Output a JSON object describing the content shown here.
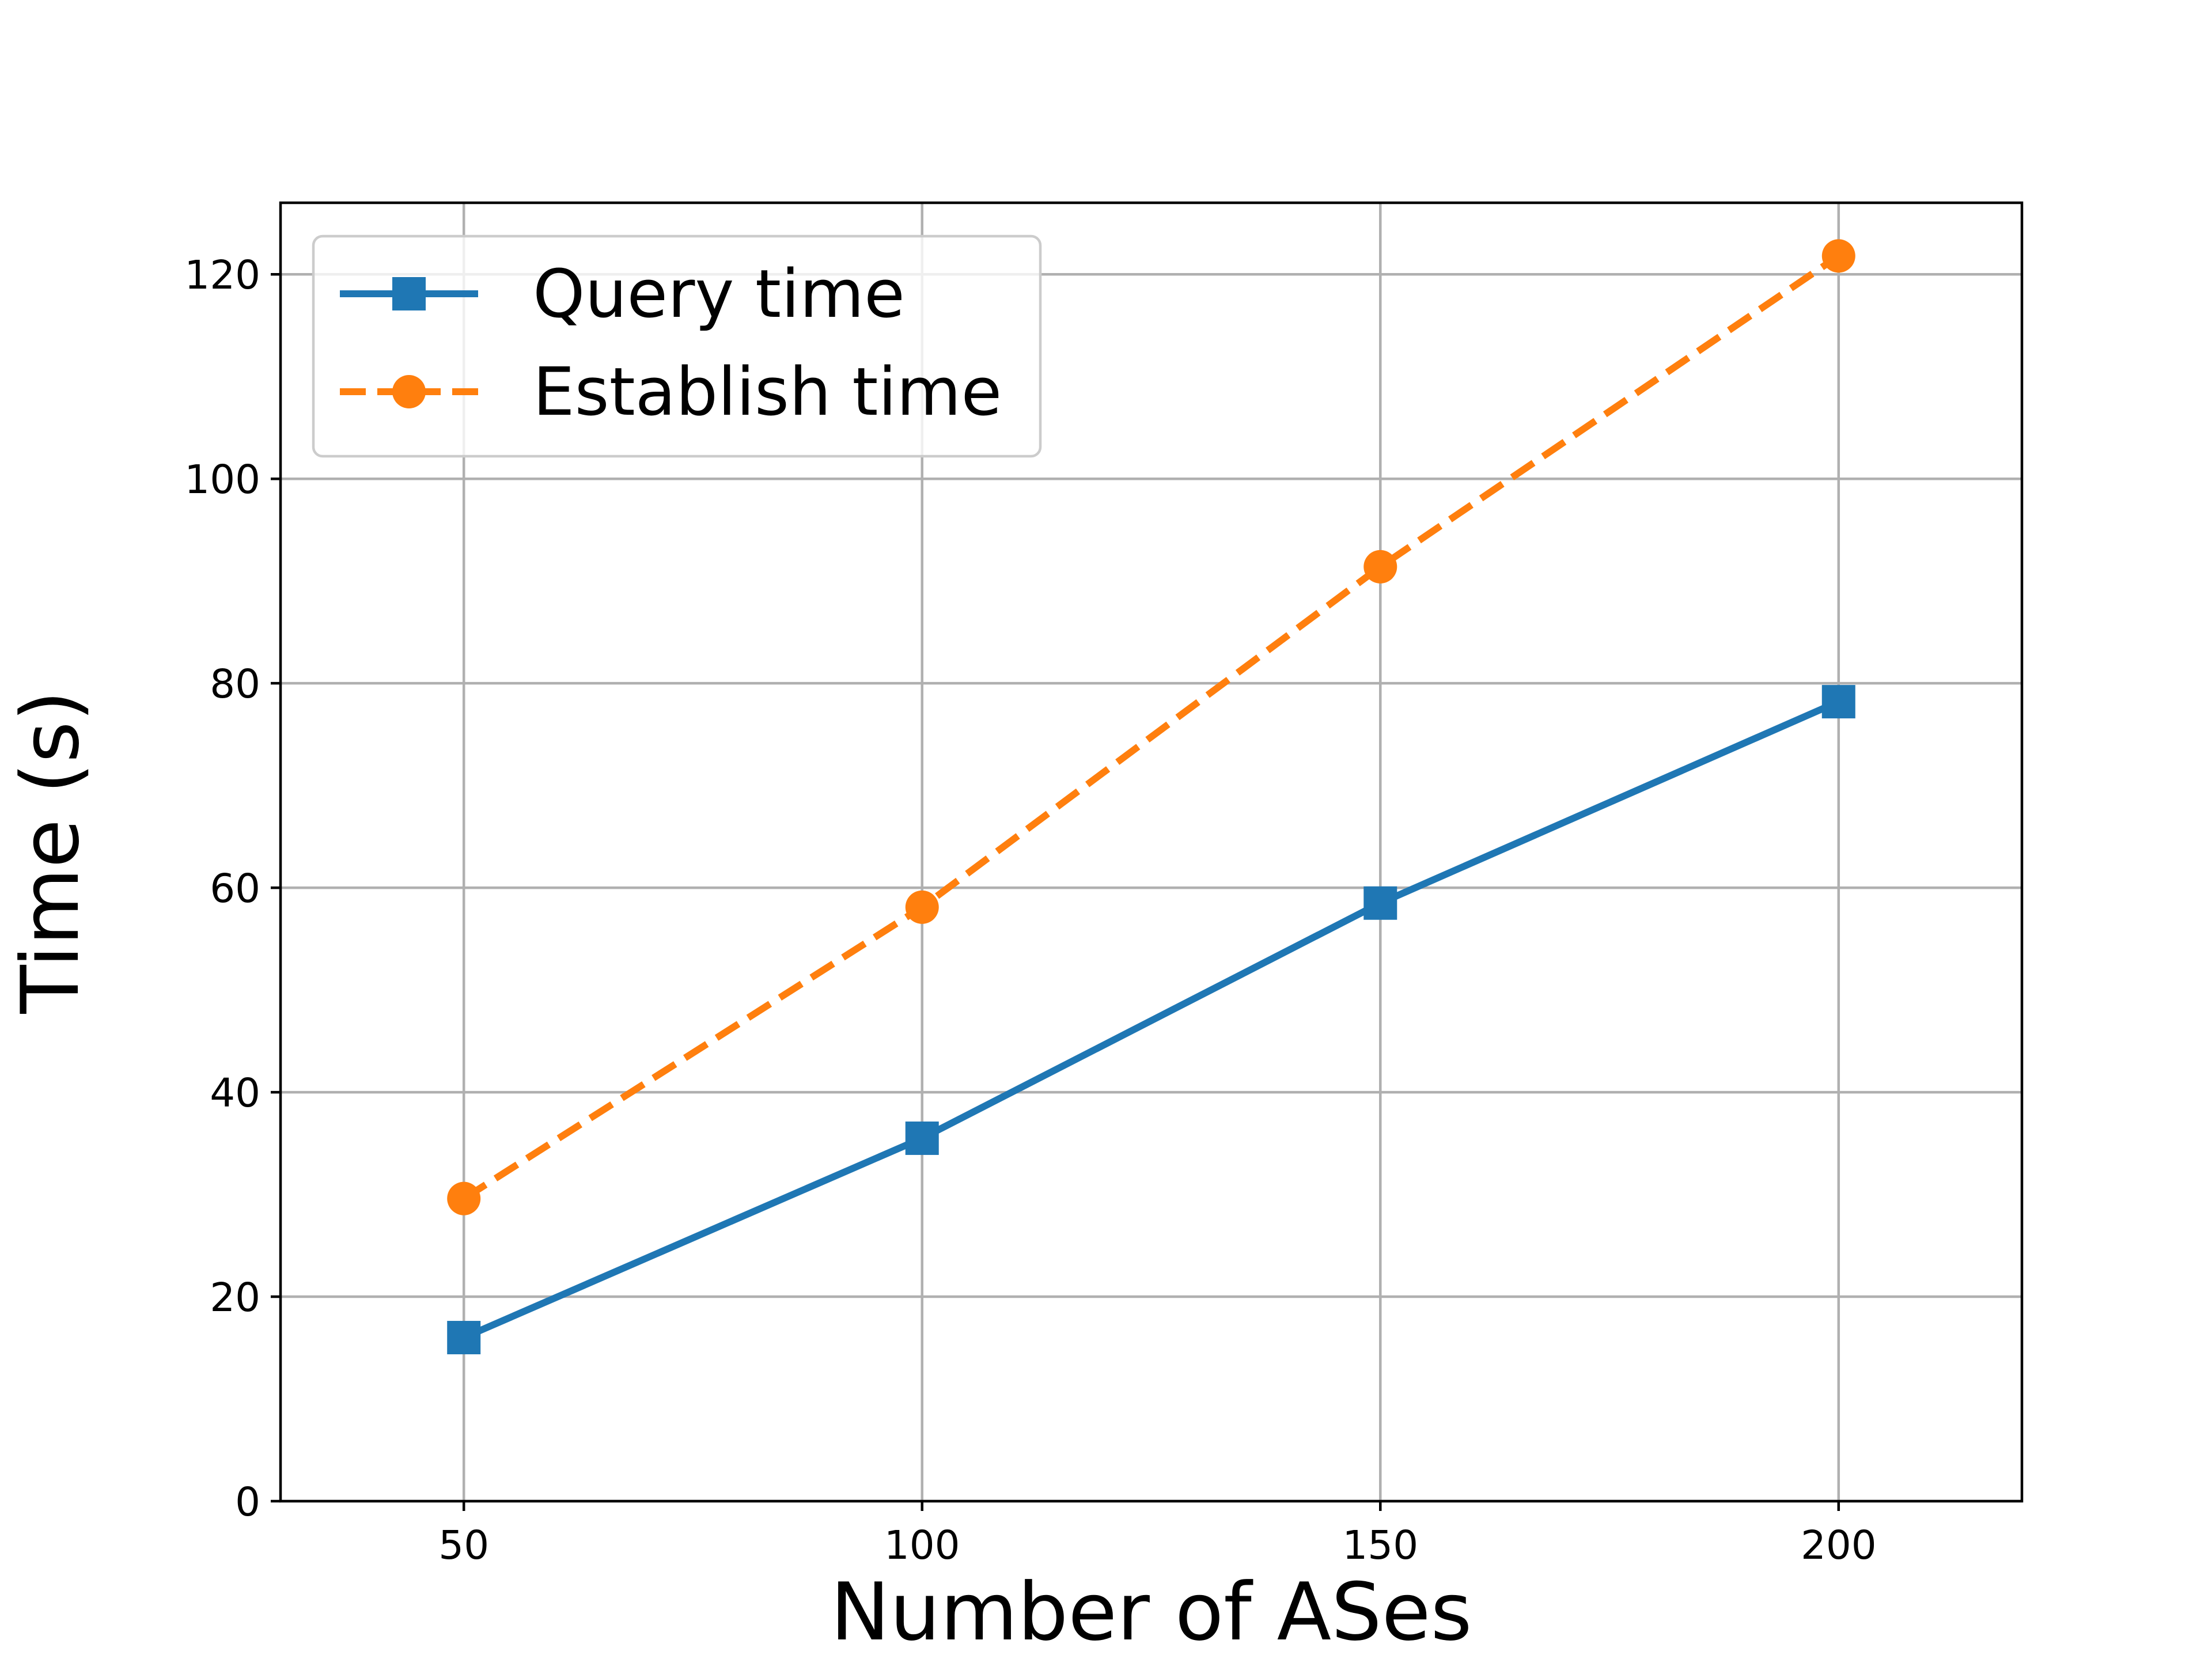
{
  "chart_data": {
    "type": "line",
    "title": "",
    "xlabel": "Number of ASes",
    "ylabel": "Time (s)",
    "xlim": [
      30,
      220
    ],
    "ylim": [
      0,
      127
    ],
    "xticks": [
      50,
      100,
      150,
      200
    ],
    "yticks": [
      0,
      20,
      40,
      60,
      80,
      100,
      120
    ],
    "grid": true,
    "legend_position": "upper-left",
    "x": [
      50,
      100,
      150,
      200
    ],
    "series": [
      {
        "name": "Query time",
        "values": [
          16.0,
          35.5,
          58.5,
          78.2
        ],
        "color": "#1f77b4",
        "line_style": "solid",
        "marker": "square"
      },
      {
        "name": "Establish time",
        "values": [
          29.6,
          58.1,
          91.4,
          121.8
        ],
        "color": "#ff7f0e",
        "line_style": "dashed",
        "marker": "circle"
      }
    ]
  }
}
